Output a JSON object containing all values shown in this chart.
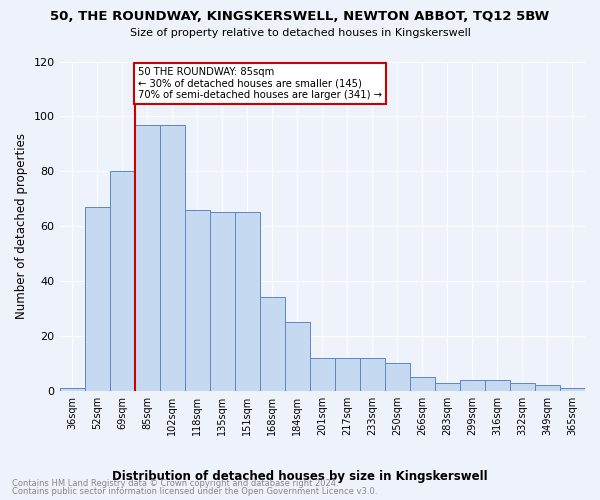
{
  "title": "50, THE ROUNDWAY, KINGSKERSWELL, NEWTON ABBOT, TQ12 5BW",
  "subtitle": "Size of property relative to detached houses in Kingskerswell",
  "xlabel": "Distribution of detached houses by size in Kingskerswell",
  "ylabel": "Number of detached properties",
  "categories": [
    "36sqm",
    "52sqm",
    "69sqm",
    "85sqm",
    "102sqm",
    "118sqm",
    "135sqm",
    "151sqm",
    "168sqm",
    "184sqm",
    "201sqm",
    "217sqm",
    "233sqm",
    "250sqm",
    "266sqm",
    "283sqm",
    "299sqm",
    "316sqm",
    "332sqm",
    "349sqm",
    "365sqm"
  ],
  "values": [
    1,
    67,
    80,
    97,
    97,
    66,
    65,
    65,
    34,
    25,
    12,
    12,
    12,
    10,
    5,
    3,
    4,
    4,
    3,
    2,
    1
  ],
  "bar_color": "#c5d9f1",
  "bar_edge_color": "#5b87c5",
  "ylim": [
    0,
    120
  ],
  "yticks": [
    0,
    20,
    40,
    60,
    80,
    100,
    120
  ],
  "property_line_index": 3,
  "annotation_title": "50 THE ROUNDWAY: 85sqm",
  "annotation_line1": "← 30% of detached houses are smaller (145)",
  "annotation_line2": "70% of semi-detached houses are larger (341) →",
  "annotation_box_color": "#ffffff",
  "annotation_box_edge_color": "#cc0000",
  "vline_color": "#cc0000",
  "footer_line1": "Contains HM Land Registry data © Crown copyright and database right 2024.",
  "footer_line2": "Contains public sector information licensed under the Open Government Licence v3.0.",
  "bg_color": "#eef2fa",
  "grid_color": "#ffffff"
}
